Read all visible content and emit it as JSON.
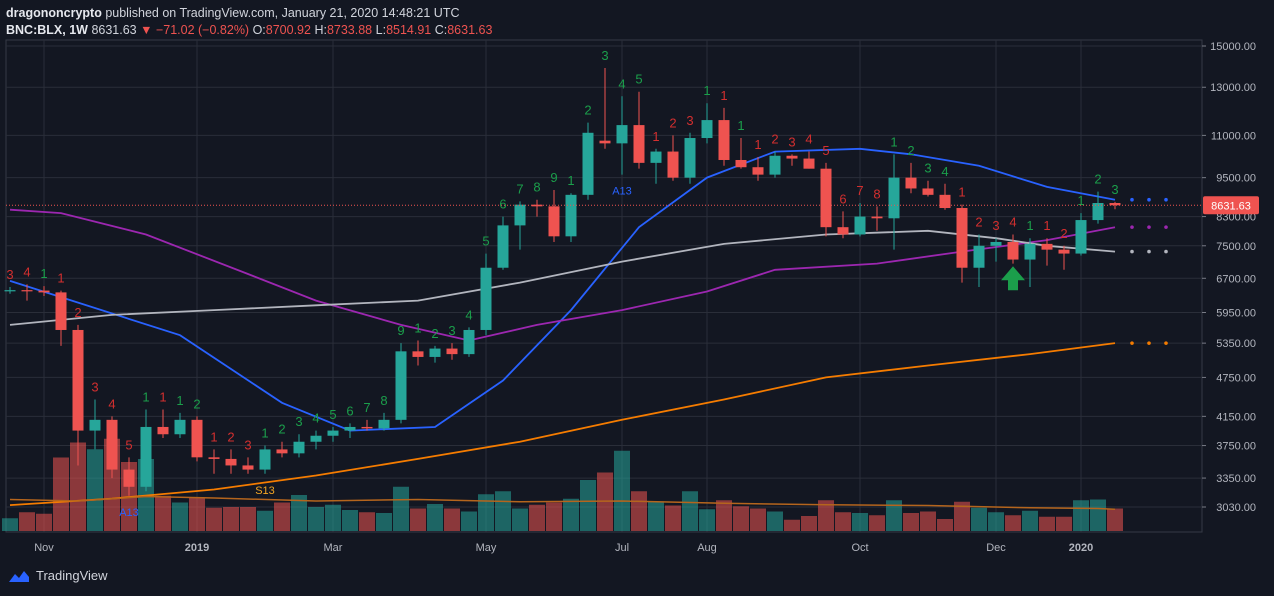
{
  "header": {
    "author": "dragononcrypto",
    "published": "published on TradingView.com, January 21, 2020 14:48:21 UTC",
    "symbol": "BNC:BLX, 1W",
    "last": "8631.63",
    "change": "−71.02 (−0.82%)",
    "o_label": "O:",
    "o": "8700.92",
    "h_label": "H:",
    "h": "8733.88",
    "l_label": "L:",
    "l": "8514.91",
    "c_label": "C:",
    "c": "8631.63"
  },
  "branding": {
    "name": "TradingView",
    "icon": "tradingview-logo-icon"
  },
  "colors": {
    "background": "#131722",
    "up": "#26a69a",
    "down": "#ef5350",
    "grid": "#2a2e39"
  },
  "chart_data": {
    "type": "candlestick",
    "price_scale": "log",
    "current_price": 8631.63,
    "y_ticks": [
      "15000.00",
      "13000.00",
      "11000.00",
      "9500.00",
      "8300.00",
      "7500.00",
      "6700.00",
      "5950.00",
      "5350.00",
      "4750.00",
      "4150.00",
      "3750.00",
      "3350.00",
      "3030.00"
    ],
    "x_ticks": [
      "Nov",
      "2019",
      "Mar",
      "May",
      "Jul",
      "Aug",
      "Oct",
      "Dec",
      "2020"
    ],
    "candles": [
      {
        "o": 6420,
        "h": 6500,
        "l": 6350,
        "c": 6430
      },
      {
        "o": 6430,
        "h": 6560,
        "l": 6200,
        "c": 6420
      },
      {
        "o": 6420,
        "h": 6520,
        "l": 6300,
        "c": 6380
      },
      {
        "o": 6380,
        "h": 6420,
        "l": 5300,
        "c": 5600
      },
      {
        "o": 5600,
        "h": 5700,
        "l": 3500,
        "c": 3950
      },
      {
        "o": 3950,
        "h": 4400,
        "l": 3700,
        "c": 4100
      },
      {
        "o": 4100,
        "h": 4150,
        "l": 3350,
        "c": 3450
      },
      {
        "o": 3450,
        "h": 3600,
        "l": 3150,
        "c": 3250
      },
      {
        "o": 3250,
        "h": 4250,
        "l": 3200,
        "c": 4000
      },
      {
        "o": 4000,
        "h": 4250,
        "l": 3850,
        "c": 3900
      },
      {
        "o": 3900,
        "h": 4200,
        "l": 3850,
        "c": 4100
      },
      {
        "o": 4100,
        "h": 4150,
        "l": 3550,
        "c": 3600
      },
      {
        "o": 3600,
        "h": 3700,
        "l": 3400,
        "c": 3580
      },
      {
        "o": 3580,
        "h": 3700,
        "l": 3400,
        "c": 3500
      },
      {
        "o": 3500,
        "h": 3600,
        "l": 3400,
        "c": 3450
      },
      {
        "o": 3450,
        "h": 3750,
        "l": 3400,
        "c": 3700
      },
      {
        "o": 3700,
        "h": 3800,
        "l": 3600,
        "c": 3650
      },
      {
        "o": 3650,
        "h": 3900,
        "l": 3600,
        "c": 3800
      },
      {
        "o": 3800,
        "h": 3950,
        "l": 3700,
        "c": 3880
      },
      {
        "o": 3880,
        "h": 4000,
        "l": 3800,
        "c": 3950
      },
      {
        "o": 3950,
        "h": 4050,
        "l": 3850,
        "c": 4000
      },
      {
        "o": 4000,
        "h": 4100,
        "l": 3950,
        "c": 3980
      },
      {
        "o": 3980,
        "h": 4200,
        "l": 3950,
        "c": 4100
      },
      {
        "o": 4100,
        "h": 5350,
        "l": 4050,
        "c": 5200
      },
      {
        "o": 5200,
        "h": 5400,
        "l": 4950,
        "c": 5100
      },
      {
        "o": 5100,
        "h": 5300,
        "l": 5000,
        "c": 5250
      },
      {
        "o": 5250,
        "h": 5350,
        "l": 5050,
        "c": 5150
      },
      {
        "o": 5150,
        "h": 5650,
        "l": 5100,
        "c": 5600
      },
      {
        "o": 5600,
        "h": 7300,
        "l": 5500,
        "c": 6950
      },
      {
        "o": 6950,
        "h": 8300,
        "l": 6900,
        "c": 8050
      },
      {
        "o": 8050,
        "h": 8750,
        "l": 7400,
        "c": 8650
      },
      {
        "o": 8650,
        "h": 8800,
        "l": 8300,
        "c": 8600
      },
      {
        "o": 8600,
        "h": 9100,
        "l": 7600,
        "c": 7750
      },
      {
        "o": 7750,
        "h": 9000,
        "l": 7600,
        "c": 8950
      },
      {
        "o": 8950,
        "h": 11500,
        "l": 8800,
        "c": 11100
      },
      {
        "o": 10800,
        "h": 13900,
        "l": 10500,
        "c": 10700
      },
      {
        "o": 10700,
        "h": 12600,
        "l": 9600,
        "c": 11400
      },
      {
        "o": 11400,
        "h": 12800,
        "l": 9800,
        "c": 10000
      },
      {
        "o": 10000,
        "h": 10500,
        "l": 9300,
        "c": 10400
      },
      {
        "o": 10400,
        "h": 11000,
        "l": 9400,
        "c": 9500
      },
      {
        "o": 9500,
        "h": 11100,
        "l": 9300,
        "c": 10900
      },
      {
        "o": 10900,
        "h": 12300,
        "l": 10700,
        "c": 11600
      },
      {
        "o": 11600,
        "h": 12100,
        "l": 9900,
        "c": 10100
      },
      {
        "o": 10100,
        "h": 10900,
        "l": 9800,
        "c": 9850
      },
      {
        "o": 9850,
        "h": 10200,
        "l": 9400,
        "c": 9600
      },
      {
        "o": 9600,
        "h": 10400,
        "l": 9500,
        "c": 10250
      },
      {
        "o": 10250,
        "h": 10300,
        "l": 9900,
        "c": 10150
      },
      {
        "o": 10150,
        "h": 10400,
        "l": 9800,
        "c": 9800
      },
      {
        "o": 9800,
        "h": 10000,
        "l": 7750,
        "c": 8000
      },
      {
        "o": 8000,
        "h": 8450,
        "l": 7700,
        "c": 7800
      },
      {
        "o": 7800,
        "h": 8700,
        "l": 7750,
        "c": 8300
      },
      {
        "o": 8300,
        "h": 8600,
        "l": 7900,
        "c": 8250
      },
      {
        "o": 8250,
        "h": 10300,
        "l": 7400,
        "c": 9500
      },
      {
        "o": 9500,
        "h": 10000,
        "l": 9000,
        "c": 9150
      },
      {
        "o": 9150,
        "h": 9400,
        "l": 8900,
        "c": 8950
      },
      {
        "o": 8950,
        "h": 9300,
        "l": 8500,
        "c": 8550
      },
      {
        "o": 8550,
        "h": 8650,
        "l": 6600,
        "c": 6950
      },
      {
        "o": 6950,
        "h": 7800,
        "l": 6500,
        "c": 7500
      },
      {
        "o": 7500,
        "h": 7700,
        "l": 7100,
        "c": 7600
      },
      {
        "o": 7600,
        "h": 7800,
        "l": 7050,
        "c": 7150
      },
      {
        "o": 7150,
        "h": 7700,
        "l": 6500,
        "c": 7550
      },
      {
        "o": 7550,
        "h": 7700,
        "l": 7000,
        "c": 7400
      },
      {
        "o": 7400,
        "h": 7500,
        "l": 6900,
        "c": 7300
      },
      {
        "o": 7300,
        "h": 8400,
        "l": 7250,
        "c": 8200
      },
      {
        "o": 8200,
        "h": 9050,
        "l": 8100,
        "c": 8700
      },
      {
        "o": 8700,
        "h": 8734,
        "l": 8515,
        "c": 8632
      }
    ],
    "volume": [
      0.17,
      0.25,
      0.23,
      0.98,
      1.18,
      1.09,
      1.23,
      0.92,
      0.96,
      0.47,
      0.38,
      0.44,
      0.31,
      0.32,
      0.32,
      0.27,
      0.38,
      0.48,
      0.32,
      0.35,
      0.28,
      0.25,
      0.24,
      0.59,
      0.3,
      0.36,
      0.3,
      0.26,
      0.49,
      0.53,
      0.3,
      0.35,
      0.38,
      0.43,
      0.68,
      0.78,
      1.07,
      0.53,
      0.39,
      0.34,
      0.53,
      0.29,
      0.41,
      0.33,
      0.3,
      0.26,
      0.15,
      0.2,
      0.41,
      0.25,
      0.24,
      0.21,
      0.41,
      0.24,
      0.26,
      0.16,
      0.39,
      0.31,
      0.25,
      0.21,
      0.27,
      0.19,
      0.19,
      0.41,
      0.42,
      0.3
    ],
    "moving_averages": [
      {
        "name": "blue",
        "color": "#2962ff",
        "values": [
          [
            0,
            6640
          ],
          [
            10,
            5500
          ],
          [
            16,
            4350
          ],
          [
            20,
            3950
          ],
          [
            25,
            4000
          ],
          [
            29,
            4700
          ],
          [
            33,
            6000
          ],
          [
            37,
            8000
          ],
          [
            41,
            9500
          ],
          [
            45,
            10400
          ],
          [
            50,
            10500
          ],
          [
            53,
            10300
          ],
          [
            57,
            9900
          ],
          [
            61,
            9200
          ],
          [
            65,
            8800
          ]
        ]
      },
      {
        "name": "purple",
        "color": "#9c27b0",
        "values": [
          [
            0,
            8500
          ],
          [
            3,
            8400
          ],
          [
            8,
            7800
          ],
          [
            14,
            6800
          ],
          [
            18,
            6200
          ],
          [
            23,
            5700
          ],
          [
            27,
            5400
          ],
          [
            31,
            5700
          ],
          [
            36,
            6000
          ],
          [
            41,
            6400
          ],
          [
            45,
            6900
          ],
          [
            51,
            7050
          ],
          [
            56,
            7350
          ],
          [
            61,
            7650
          ],
          [
            65,
            8000
          ]
        ]
      },
      {
        "name": "gray",
        "color": "#b2b5be",
        "values": [
          [
            0,
            5700
          ],
          [
            6,
            5900
          ],
          [
            12,
            6000
          ],
          [
            18,
            6100
          ],
          [
            24,
            6200
          ],
          [
            30,
            6600
          ],
          [
            36,
            7100
          ],
          [
            42,
            7550
          ],
          [
            48,
            7800
          ],
          [
            54,
            7900
          ],
          [
            58,
            7700
          ],
          [
            61,
            7500
          ],
          [
            65,
            7350
          ]
        ]
      },
      {
        "name": "orange",
        "color": "#f57c00",
        "values": [
          [
            0,
            3050
          ],
          [
            6,
            3120
          ],
          [
            12,
            3220
          ],
          [
            18,
            3380
          ],
          [
            24,
            3580
          ],
          [
            30,
            3800
          ],
          [
            36,
            4100
          ],
          [
            42,
            4400
          ],
          [
            48,
            4750
          ],
          [
            54,
            4950
          ],
          [
            60,
            5150
          ],
          [
            65,
            5350
          ]
        ]
      },
      {
        "name": "volume-ma",
        "color": "#b5651d",
        "values": [
          [
            0,
            0.42
          ],
          [
            4,
            0.4
          ],
          [
            8,
            0.46
          ],
          [
            12,
            0.44
          ],
          [
            18,
            0.4
          ],
          [
            24,
            0.42
          ],
          [
            30,
            0.39
          ],
          [
            36,
            0.4
          ],
          [
            42,
            0.37
          ],
          [
            48,
            0.35
          ],
          [
            54,
            0.34
          ],
          [
            60,
            0.31
          ],
          [
            64,
            0.3
          ],
          [
            65,
            0.29
          ]
        ]
      }
    ],
    "td_labels": [
      {
        "i": 0,
        "t": "3",
        "c": "red",
        "pos": "above"
      },
      {
        "i": 1,
        "t": "4",
        "c": "red",
        "pos": "above"
      },
      {
        "i": 2,
        "t": "1",
        "c": "green",
        "pos": "above"
      },
      {
        "i": 3,
        "t": "1",
        "c": "red",
        "pos": "above"
      },
      {
        "i": 4,
        "t": "2",
        "c": "red",
        "pos": "above"
      },
      {
        "i": 5,
        "t": "3",
        "c": "red",
        "pos": "above"
      },
      {
        "i": 6,
        "t": "4",
        "c": "red",
        "pos": "above"
      },
      {
        "i": 7,
        "t": "5",
        "c": "red",
        "pos": "above"
      },
      {
        "i": 8,
        "t": "1",
        "c": "green",
        "pos": "above"
      },
      {
        "i": 9,
        "t": "1",
        "c": "red",
        "pos": "above"
      },
      {
        "i": 10,
        "t": "1",
        "c": "green",
        "pos": "above"
      },
      {
        "i": 11,
        "t": "2",
        "c": "green",
        "pos": "above"
      },
      {
        "i": 12,
        "t": "1",
        "c": "red",
        "pos": "above"
      },
      {
        "i": 13,
        "t": "2",
        "c": "red",
        "pos": "above"
      },
      {
        "i": 14,
        "t": "3",
        "c": "red",
        "pos": "above"
      },
      {
        "i": 15,
        "t": "1",
        "c": "green",
        "pos": "above"
      },
      {
        "i": 16,
        "t": "2",
        "c": "green",
        "pos": "above"
      },
      {
        "i": 17,
        "t": "3",
        "c": "green",
        "pos": "above"
      },
      {
        "i": 18,
        "t": "4",
        "c": "green",
        "pos": "above"
      },
      {
        "i": 19,
        "t": "5",
        "c": "green",
        "pos": "above"
      },
      {
        "i": 20,
        "t": "6",
        "c": "green",
        "pos": "above"
      },
      {
        "i": 21,
        "t": "7",
        "c": "green",
        "pos": "above"
      },
      {
        "i": 22,
        "t": "8",
        "c": "green",
        "pos": "above"
      },
      {
        "i": 23,
        "t": "9",
        "c": "green",
        "pos": "above"
      },
      {
        "i": 24,
        "t": "1",
        "c": "green",
        "pos": "above"
      },
      {
        "i": 25,
        "t": "2",
        "c": "green",
        "pos": "above"
      },
      {
        "i": 26,
        "t": "3",
        "c": "green",
        "pos": "above"
      },
      {
        "i": 27,
        "t": "4",
        "c": "green",
        "pos": "above"
      },
      {
        "i": 28,
        "t": "5",
        "c": "green",
        "pos": "above"
      },
      {
        "i": 29,
        "t": "6",
        "c": "green",
        "pos": "above"
      },
      {
        "i": 30,
        "t": "7",
        "c": "green",
        "pos": "above"
      },
      {
        "i": 31,
        "t": "8",
        "c": "green",
        "pos": "above"
      },
      {
        "i": 32,
        "t": "9",
        "c": "green",
        "pos": "above"
      },
      {
        "i": 33,
        "t": "1",
        "c": "green",
        "pos": "above"
      },
      {
        "i": 34,
        "t": "2",
        "c": "green",
        "pos": "above"
      },
      {
        "i": 35,
        "t": "3",
        "c": "green",
        "pos": "above"
      },
      {
        "i": 36,
        "t": "4",
        "c": "green",
        "pos": "above"
      },
      {
        "i": 37,
        "t": "5",
        "c": "green",
        "pos": "above"
      },
      {
        "i": 38,
        "t": "1",
        "c": "red",
        "pos": "above"
      },
      {
        "i": 39,
        "t": "2",
        "c": "red",
        "pos": "above"
      },
      {
        "i": 40,
        "t": "3",
        "c": "red",
        "pos": "above"
      },
      {
        "i": 41,
        "t": "1",
        "c": "green",
        "pos": "above"
      },
      {
        "i": 42,
        "t": "1",
        "c": "red",
        "pos": "above"
      },
      {
        "i": 43,
        "t": "1",
        "c": "green",
        "pos": "above"
      },
      {
        "i": 44,
        "t": "1",
        "c": "red",
        "pos": "above"
      },
      {
        "i": 45,
        "t": "2",
        "c": "red",
        "pos": "above"
      },
      {
        "i": 46,
        "t": "3",
        "c": "red",
        "pos": "above"
      },
      {
        "i": 47,
        "t": "4",
        "c": "red",
        "pos": "above"
      },
      {
        "i": 48,
        "t": "5",
        "c": "red",
        "pos": "above"
      },
      {
        "i": 49,
        "t": "6",
        "c": "red",
        "pos": "above"
      },
      {
        "i": 50,
        "t": "7",
        "c": "red",
        "pos": "above"
      },
      {
        "i": 51,
        "t": "8",
        "c": "red",
        "pos": "above"
      },
      {
        "i": 52,
        "t": "1",
        "c": "green",
        "pos": "above"
      },
      {
        "i": 53,
        "t": "2",
        "c": "green",
        "pos": "above"
      },
      {
        "i": 54,
        "t": "3",
        "c": "green",
        "pos": "above"
      },
      {
        "i": 55,
        "t": "4",
        "c": "green",
        "pos": "above"
      },
      {
        "i": 56,
        "t": "1",
        "c": "red",
        "pos": "above"
      },
      {
        "i": 57,
        "t": "2",
        "c": "red",
        "pos": "above"
      },
      {
        "i": 58,
        "t": "3",
        "c": "red",
        "pos": "above"
      },
      {
        "i": 59,
        "t": "4",
        "c": "red",
        "pos": "above"
      },
      {
        "i": 60,
        "t": "1",
        "c": "green",
        "pos": "above"
      },
      {
        "i": 61,
        "t": "1",
        "c": "red",
        "pos": "above"
      },
      {
        "i": 62,
        "t": "2",
        "c": "red",
        "pos": "above"
      },
      {
        "i": 63,
        "t": "1",
        "c": "green",
        "pos": "above"
      },
      {
        "i": 64,
        "t": "2",
        "c": "green",
        "pos": "above"
      },
      {
        "i": 65,
        "t": "3",
        "c": "green",
        "pos": "above"
      }
    ],
    "annotations": [
      {
        "i": 7,
        "t": "A13",
        "c": "#2962ff"
      },
      {
        "i": 15,
        "t": "S13",
        "c": "#f5a623"
      },
      {
        "i": 36,
        "t": "A13",
        "c": "#2962ff"
      }
    ]
  }
}
